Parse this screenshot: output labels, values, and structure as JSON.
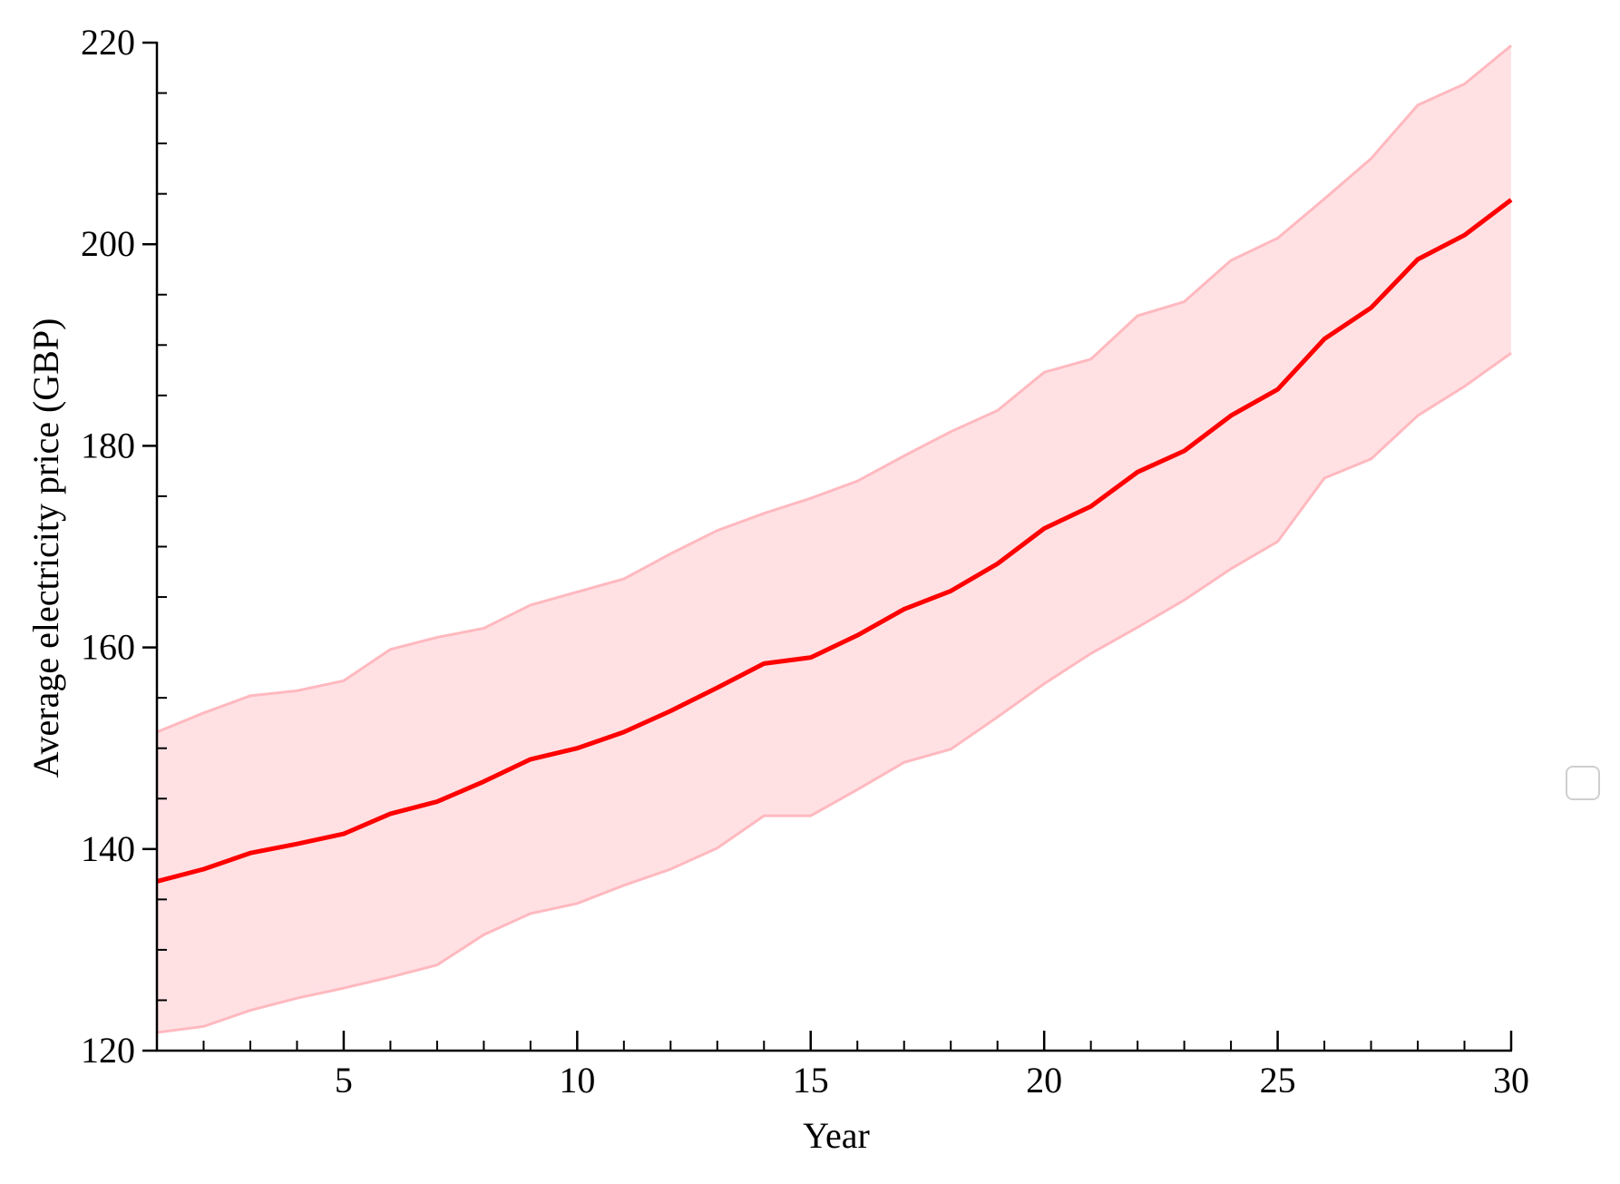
{
  "chart_data": {
    "type": "line",
    "title": "",
    "xlabel": "Year",
    "ylabel": "Average electricity price (GBP)",
    "xlim": [
      1,
      30
    ],
    "ylim": [
      120,
      220
    ],
    "x_ticks": [
      5,
      10,
      15,
      20,
      25,
      30
    ],
    "x_tick_labels": [
      "5",
      "10",
      "15",
      "20",
      "25",
      "30"
    ],
    "x_minor_step": 1,
    "y_ticks": [
      120,
      140,
      160,
      180,
      200,
      220
    ],
    "y_tick_labels": [
      "120",
      "140",
      "160",
      "180",
      "200",
      "220"
    ],
    "y_minor_step": 5,
    "grid": false,
    "legend": "empty legend box at right",
    "colors": {
      "line": "#ff0000",
      "band_fill": "#ffe1e4",
      "band_edge": "#ffb9bf",
      "axis": "#000000"
    },
    "x": [
      1,
      2,
      3,
      4,
      5,
      6,
      7,
      8,
      9,
      10,
      11,
      12,
      13,
      14,
      15,
      16,
      17,
      18,
      19,
      20,
      21,
      22,
      23,
      24,
      25,
      26,
      27,
      28,
      29,
      30
    ],
    "series": [
      {
        "values": [
          136.8,
          138.0,
          139.6,
          140.5,
          141.5,
          143.5,
          144.7,
          146.7,
          148.9,
          150.0,
          151.6,
          153.7,
          156.0,
          158.4,
          159.0,
          161.2,
          163.8,
          165.6,
          168.3,
          171.8,
          174.0,
          177.4,
          179.5,
          183.0,
          185.6,
          190.6,
          193.7,
          198.5,
          200.9,
          204.4
        ],
        "lower": [
          121.8,
          122.4,
          124.0,
          125.2,
          126.2,
          127.3,
          128.5,
          131.5,
          133.6,
          134.6,
          136.4,
          138.0,
          140.1,
          143.3,
          143.3,
          145.9,
          148.6,
          149.9,
          153.1,
          156.4,
          159.4,
          162.0,
          164.7,
          167.8,
          170.5,
          176.8,
          178.7,
          183.0,
          185.9,
          189.2
        ],
        "upper": [
          151.6,
          153.5,
          155.2,
          155.7,
          156.7,
          159.8,
          161.0,
          161.9,
          164.2,
          165.5,
          166.8,
          169.3,
          171.6,
          173.3,
          174.8,
          176.5,
          179.0,
          181.4,
          183.5,
          187.3,
          188.6,
          192.9,
          194.3,
          198.4,
          200.6,
          204.5,
          208.5,
          213.8,
          215.9,
          219.7
        ]
      }
    ]
  }
}
